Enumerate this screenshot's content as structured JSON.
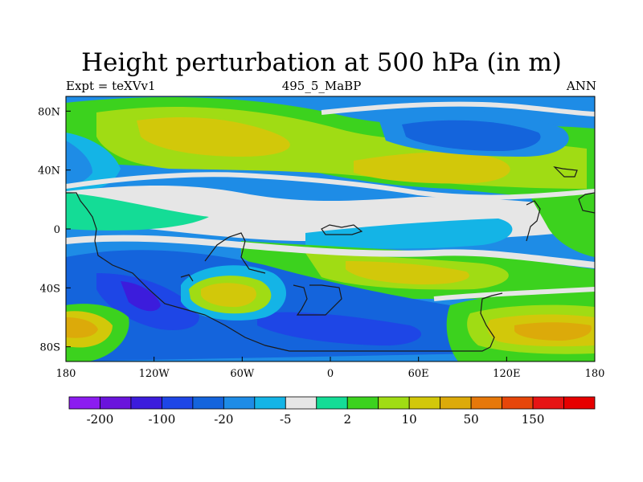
{
  "header": {
    "title": "Height perturbation at 500 hPa (in m)",
    "left_string": "Expt = teXVv1",
    "center_string": "495_5_MaBP",
    "right_string": "ANN"
  },
  "map": {
    "lon_range": [
      -180,
      180
    ],
    "lat_range": [
      -90,
      90
    ],
    "x_ticks": [
      "180",
      "120W",
      "60W",
      "0",
      "60E",
      "120E",
      "180"
    ],
    "y_ticks": [
      "80N",
      "40N",
      "0",
      "40S",
      "80S"
    ]
  },
  "colorbar": {
    "colors": [
      "#8c1cf0",
      "#6a14dc",
      "#3c1cdc",
      "#1e46e6",
      "#1464dc",
      "#1e8ce6",
      "#14b4e6",
      "#e6e6e6",
      "#14dc96",
      "#3cd21e",
      "#a0dc14",
      "#d2c80a",
      "#dcaa0a",
      "#e6780a",
      "#e6460a",
      "#e61414",
      "#e60000"
    ],
    "labels": [
      "-200",
      "-100",
      "-20",
      "-5",
      "2",
      "10",
      "50",
      "150"
    ]
  }
}
